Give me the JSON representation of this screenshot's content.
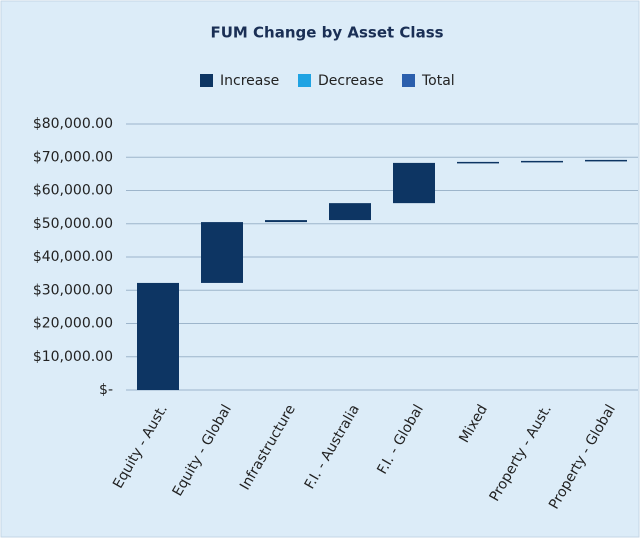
{
  "chart_data": {
    "type": "waterfall",
    "title": "FUM Change by Asset Class",
    "legend": [
      {
        "name": "Increase",
        "color": "#0d3563"
      },
      {
        "name": "Decrease",
        "color": "#1fa3e3"
      },
      {
        "name": "Total",
        "color": "#2b5fad"
      }
    ],
    "categories": [
      "Equity - Aust.",
      "Equity - Global",
      "Infrastructure",
      "F.I. - Australia",
      "F.I. - Global",
      "Mixed",
      "Property - Aust.",
      "Property - Global"
    ],
    "values": [
      32200,
      18300,
      600,
      5100,
      12100,
      300,
      300,
      300
    ],
    "ylim": [
      0,
      80000
    ],
    "yticks": [
      {
        "value": 0,
        "label": "$-"
      },
      {
        "value": 10000,
        "label": "$10,000.00"
      },
      {
        "value": 20000,
        "label": "$20,000.00"
      },
      {
        "value": 30000,
        "label": "$30,000.00"
      },
      {
        "value": 40000,
        "label": "$40,000.00"
      },
      {
        "value": 50000,
        "label": "$50,000.00"
      },
      {
        "value": 60000,
        "label": "$60,000.00"
      },
      {
        "value": 70000,
        "label": "$70,000.00"
      },
      {
        "value": 80000,
        "label": "$80,000.00"
      }
    ],
    "grid": true
  }
}
